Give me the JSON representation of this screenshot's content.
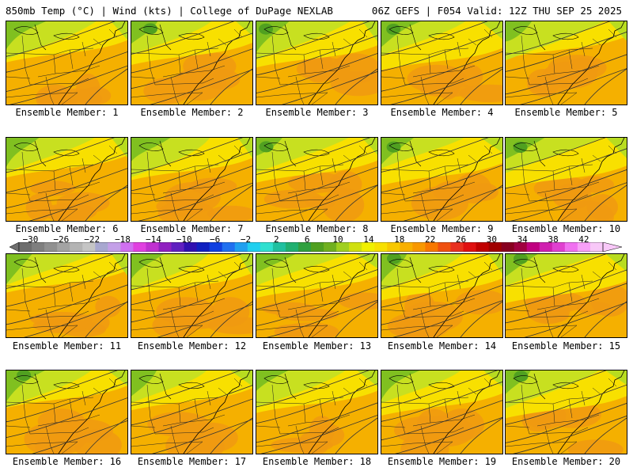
{
  "header": {
    "left": "850mb Temp (°C) | Wind (kts) | College of DuPage NEXLAB",
    "right": "06Z GEFS | F054 Valid: 12Z THU SEP 25 2025"
  },
  "panels": [
    {
      "label": "Ensemble Member: 1",
      "icon": "temperature-map"
    },
    {
      "label": "Ensemble Member: 2",
      "icon": "temperature-map"
    },
    {
      "label": "Ensemble Member: 3",
      "icon": "temperature-map"
    },
    {
      "label": "Ensemble Member: 4",
      "icon": "temperature-map"
    },
    {
      "label": "Ensemble Member: 5",
      "icon": "temperature-map"
    },
    {
      "label": "Ensemble Member: 6",
      "icon": "temperature-map"
    },
    {
      "label": "Ensemble Member: 7",
      "icon": "temperature-map"
    },
    {
      "label": "Ensemble Member: 8",
      "icon": "temperature-map"
    },
    {
      "label": "Ensemble Member: 9",
      "icon": "temperature-map"
    },
    {
      "label": "Ensemble Member: 10",
      "icon": "temperature-map"
    },
    {
      "label": "Ensemble Member: 11",
      "icon": "temperature-map"
    },
    {
      "label": "Ensemble Member: 12",
      "icon": "temperature-map"
    },
    {
      "label": "Ensemble Member: 13",
      "icon": "temperature-map"
    },
    {
      "label": "Ensemble Member: 14",
      "icon": "temperature-map"
    },
    {
      "label": "Ensemble Member: 15",
      "icon": "temperature-map"
    },
    {
      "label": "Ensemble Member: 16",
      "icon": "temperature-map"
    },
    {
      "label": "Ensemble Member: 17",
      "icon": "temperature-map"
    },
    {
      "label": "Ensemble Member: 18",
      "icon": "temperature-map"
    },
    {
      "label": "Ensemble Member: 19",
      "icon": "temperature-map"
    },
    {
      "label": "Ensemble Member: 20",
      "icon": "temperature-map"
    }
  ],
  "colorbar": {
    "ticks": [
      "−30",
      "−26",
      "−22",
      "−18",
      "−14",
      "−10",
      "−6",
      "−2",
      "2",
      "6",
      "10",
      "14",
      "18",
      "22",
      "26",
      "30",
      "34",
      "38",
      "42"
    ],
    "colors": [
      "#6e6e6e",
      "#7f7f7f",
      "#909090",
      "#a3a3a3",
      "#b4b4b4",
      "#c5c5c5",
      "#a8a8d0",
      "#c4a0e8",
      "#d070f0",
      "#e040e0",
      "#c030d0",
      "#9020c0",
      "#6020c0",
      "#3010b0",
      "#1020c0",
      "#1040e0",
      "#2070f0",
      "#20a0f0",
      "#20d0f0",
      "#30e0d0",
      "#20c0a0",
      "#20b070",
      "#30a040",
      "#50a020",
      "#70b020",
      "#a0d020",
      "#d0e010",
      "#f0f000",
      "#f8e000",
      "#f8c800",
      "#f8b000",
      "#f89800",
      "#f87800",
      "#f05010",
      "#e83020",
      "#e01010",
      "#c00000",
      "#a00000",
      "#880020",
      "#a00040",
      "#c00080",
      "#d020b0",
      "#e040d0",
      "#f070f0",
      "#f8a0f8",
      "#f8c8f8"
    ]
  }
}
